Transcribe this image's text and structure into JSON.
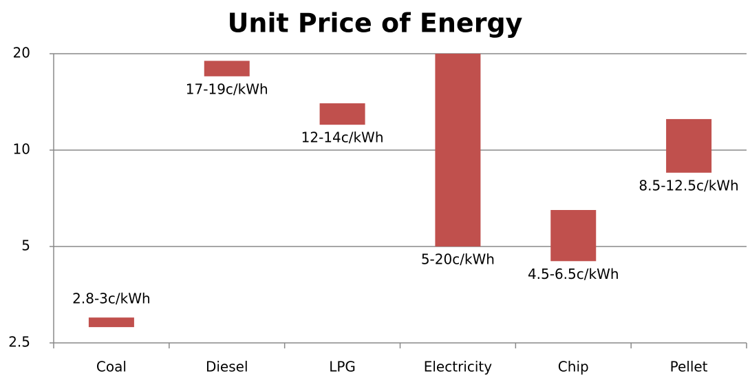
{
  "chart_data": {
    "type": "floating-bar",
    "title": "Unit Price of Energy",
    "categories": [
      "Coal",
      "Diesel",
      "LPG",
      "Electricity",
      "Chip",
      "Pellet"
    ],
    "low": [
      2.8,
      17,
      12,
      5,
      4.5,
      8.5
    ],
    "high": [
      3,
      19,
      14,
      20,
      6.5,
      12.5
    ],
    "value_labels": [
      "2.8-3c/kWh",
      "17-19c/kWh",
      "12-14c/kWh",
      "5-20c/kWh",
      "4.5-6.5c/kWh",
      "8.5-12.5c/kWh"
    ],
    "color": "#c0504d",
    "log_scale": true,
    "grid": true,
    "ylim": [
      2.5,
      20
    ],
    "yticks": [
      2.5,
      5,
      10,
      20
    ]
  }
}
